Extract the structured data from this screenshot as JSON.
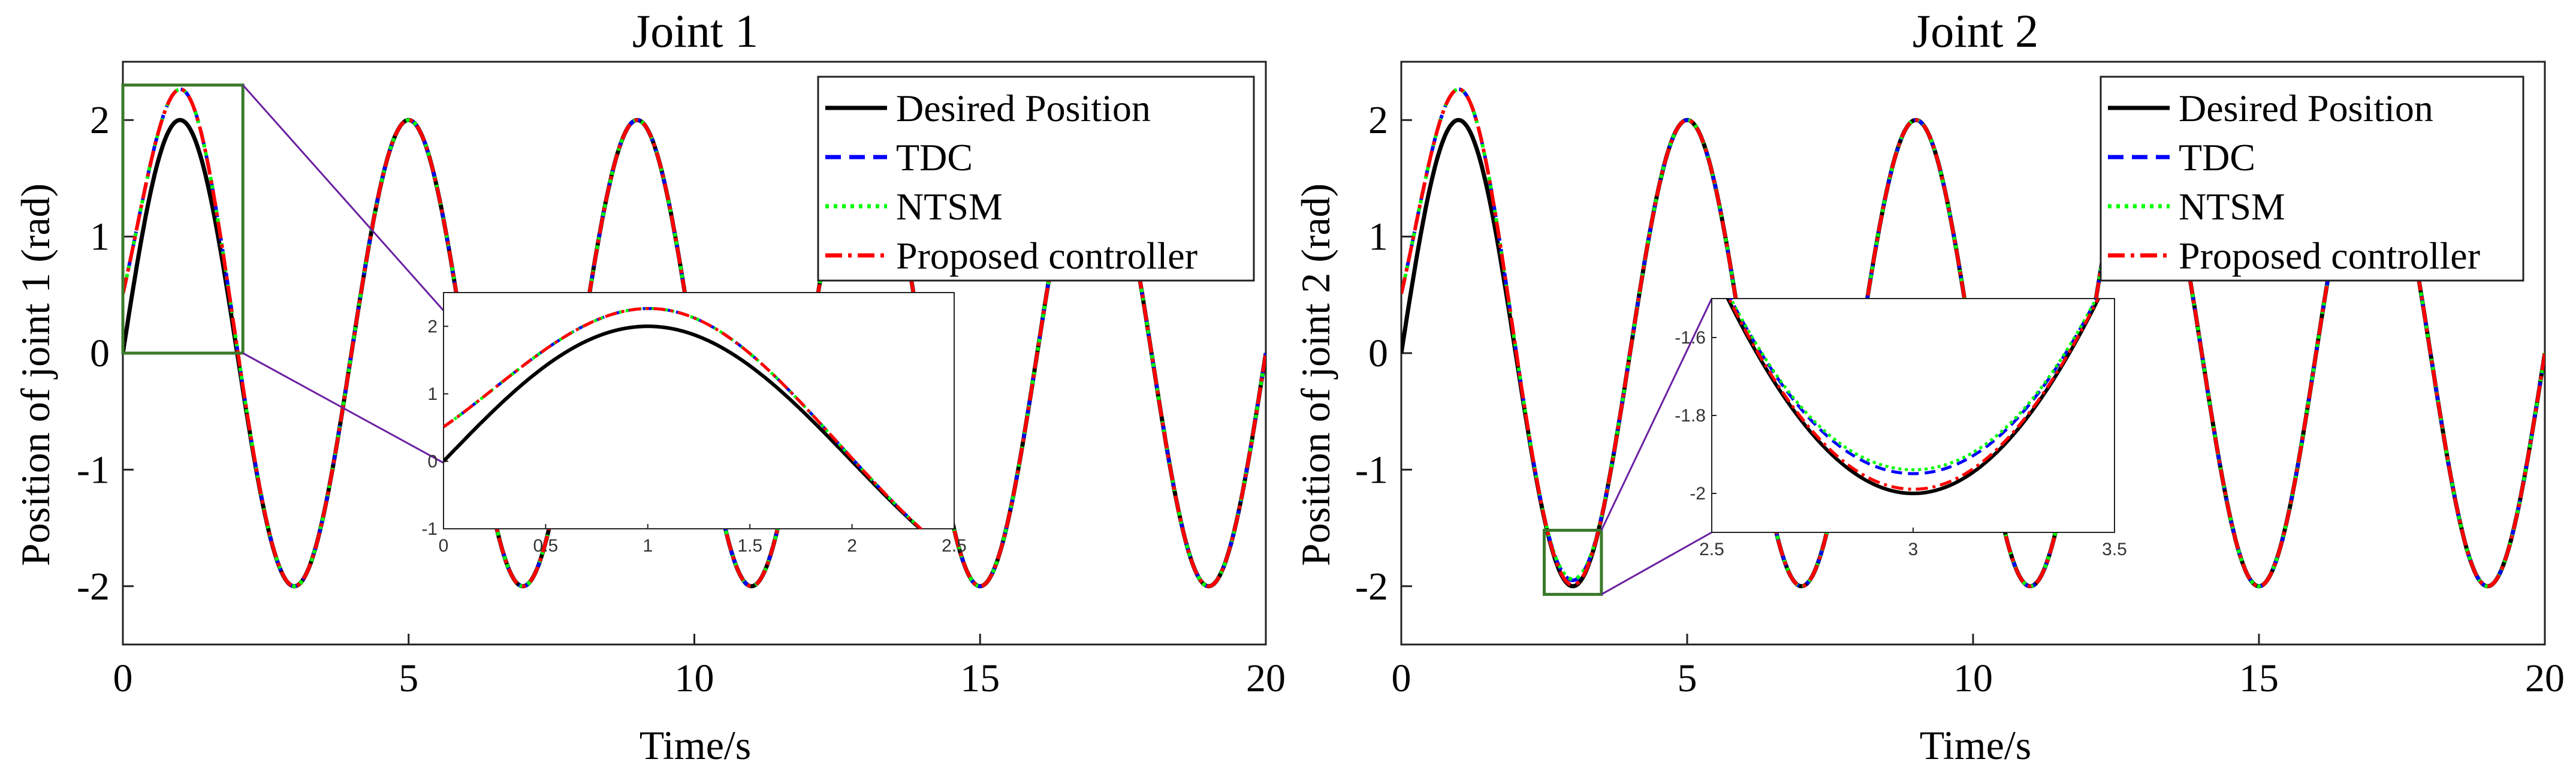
{
  "chart_data": [
    {
      "type": "line",
      "title": "Joint 1",
      "xlabel": "Time/s",
      "ylabel": "Position of joint 1 (rad)",
      "xlim": [
        0,
        20
      ],
      "ylim": [
        -2.5,
        2.5
      ],
      "xticks": [
        "0",
        "5",
        "10",
        "15",
        "20"
      ],
      "yticks": [
        "-2",
        "-1",
        "0",
        "1",
        "2"
      ],
      "legend_position": "top-right",
      "desired": {
        "function": "2*sin(pi*t/2)",
        "omega_rad_per_s": 1.5708,
        "amplitude": 2
      },
      "series": [
        {
          "name": "Desired Position",
          "color": "#000000",
          "style": "solid",
          "initial_value": 0,
          "peak": 2.0
        },
        {
          "name": "TDC",
          "color": "#0000ff",
          "style": "dashed",
          "initial_value": 0.5,
          "peak": 2.22
        },
        {
          "name": "NTSM",
          "color": "#00ff00",
          "style": "dotted",
          "initial_value": 0.5,
          "peak": 2.22
        },
        {
          "name": "Proposed controller",
          "color": "#ff0000",
          "style": "dashdot",
          "initial_value": 0.5,
          "peak": 2.22
        }
      ],
      "inset": {
        "xlim": [
          0,
          2.5
        ],
        "ylim": [
          -1,
          2.5
        ],
        "xticks": [
          "0",
          "0.5",
          "1",
          "1.5",
          "2",
          "2.5"
        ],
        "yticks": [
          "-1",
          "0",
          "1",
          "2"
        ],
        "zoom_region": {
          "x": [
            0,
            2.1
          ],
          "y": [
            0,
            2.3
          ]
        }
      }
    },
    {
      "type": "line",
      "title": "Joint 2",
      "xlabel": "Time/s",
      "ylabel": "Position of joint 2 (rad)",
      "xlim": [
        0,
        20
      ],
      "ylim": [
        -2.5,
        2.5
      ],
      "xticks": [
        "0",
        "5",
        "10",
        "15",
        "20"
      ],
      "yticks": [
        "-2",
        "-1",
        "0",
        "1",
        "2"
      ],
      "legend_position": "top-right",
      "desired": {
        "function": "2*sin(pi*t/2)",
        "omega_rad_per_s": 1.5708,
        "amplitude": 2
      },
      "series": [
        {
          "name": "Desired Position",
          "color": "#000000",
          "style": "solid",
          "initial_value": 0,
          "peak": 2.0,
          "trough_value": -2.0
        },
        {
          "name": "TDC",
          "color": "#0000ff",
          "style": "dashed",
          "initial_value": 0.5,
          "peak": 2.22,
          "trough_value": -1.95
        },
        {
          "name": "NTSM",
          "color": "#00ff00",
          "style": "dotted",
          "initial_value": 0.5,
          "peak": 2.22,
          "trough_value": -1.94
        },
        {
          "name": "Proposed controller",
          "color": "#ff0000",
          "style": "dashdot",
          "initial_value": 0.5,
          "peak": 2.22,
          "trough_value": -1.99
        }
      ],
      "inset": {
        "xlim": [
          2.5,
          3.5
        ],
        "ylim": [
          -2.1,
          -1.5
        ],
        "xticks": [
          "2.5",
          "3",
          "3.5"
        ],
        "yticks": [
          "-1.6",
          "-1.8",
          "-2"
        ],
        "zoom_region": {
          "x": [
            2.5,
            3.5
          ],
          "y": [
            -2.07,
            -1.52
          ]
        }
      }
    }
  ],
  "colors": {
    "zoom_box": "#3a7a2a",
    "connector": "#6a1fa0"
  }
}
